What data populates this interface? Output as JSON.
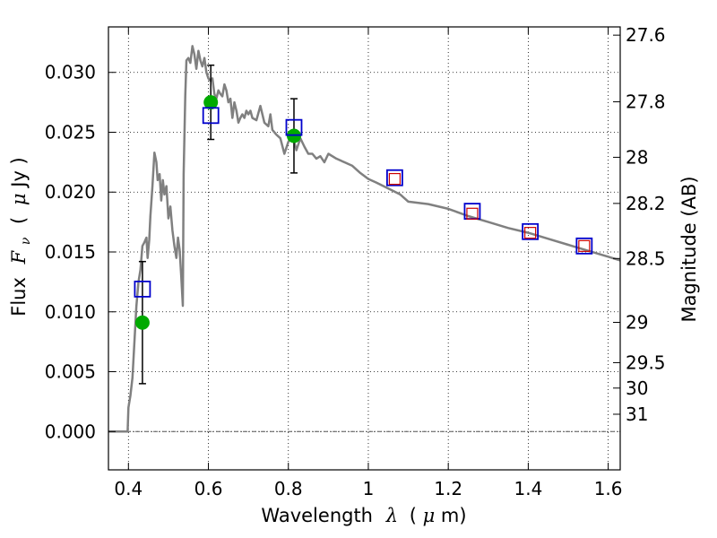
{
  "chart_data": {
    "type": "scatter",
    "xlabel_prefix": "Wavelength",
    "xlabel_symbol": "λ",
    "xlabel_unit_open": "(",
    "xlabel_unit_mu": "μ",
    "xlabel_unit_rest": "m)",
    "ylabel_prefix": "Flux",
    "ylabel_symbol": "F",
    "ylabel_subscript": "ν",
    "ylabel_unit_open": "(",
    "ylabel_unit_mu": "μ",
    "ylabel_unit_rest": "Jy )",
    "y2label": "Magnitude (AB)",
    "xlim": [
      0.35,
      1.63
    ],
    "ylim": [
      -0.0032,
      0.0338
    ],
    "grid": true,
    "x_ticks": [
      {
        "v": 0.4,
        "t": "0.4"
      },
      {
        "v": 0.6,
        "t": "0.6"
      },
      {
        "v": 0.8,
        "t": "0.8"
      },
      {
        "v": 1.0,
        "t": "1"
      },
      {
        "v": 1.2,
        "t": "1.2"
      },
      {
        "v": 1.4,
        "t": "1.4"
      },
      {
        "v": 1.6,
        "t": "1.6"
      }
    ],
    "y_ticks": [
      {
        "v": 0.0,
        "t": "0.000"
      },
      {
        "v": 0.005,
        "t": "0.005"
      },
      {
        "v": 0.01,
        "t": "0.010"
      },
      {
        "v": 0.015,
        "t": "0.015"
      },
      {
        "v": 0.02,
        "t": "0.020"
      },
      {
        "v": 0.025,
        "t": "0.025"
      },
      {
        "v": 0.03,
        "t": "0.030"
      }
    ],
    "mag_ticks": [
      {
        "v": 27.6,
        "t": "27.6"
      },
      {
        "v": 27.8,
        "t": "27.8"
      },
      {
        "v": 28.0,
        "t": "28"
      },
      {
        "v": 28.2,
        "t": "28.2"
      },
      {
        "v": 28.5,
        "t": "28.5"
      },
      {
        "v": 29.0,
        "t": "29"
      },
      {
        "v": 29.5,
        "t": "29.5"
      },
      {
        "v": 30.0,
        "t": "30"
      },
      {
        "v": 31.0,
        "t": "31"
      }
    ],
    "colors": {
      "spectrum": "#808080",
      "observed": "#00aa00",
      "model_band": "#0000cc",
      "model_ir": "#cc0000",
      "errorbar": "#000000",
      "zero_line": "#555555"
    },
    "series": [
      {
        "kind": "spectrum",
        "x": [
          0.35,
          0.398,
          0.4,
          0.405,
          0.41,
          0.415,
          0.42,
          0.425,
          0.43,
          0.435,
          0.44,
          0.445,
          0.448,
          0.452,
          0.455,
          0.46,
          0.465,
          0.47,
          0.473,
          0.478,
          0.482,
          0.486,
          0.49,
          0.495,
          0.5,
          0.505,
          0.51,
          0.515,
          0.52,
          0.524,
          0.528,
          0.532,
          0.536,
          0.538,
          0.542,
          0.545,
          0.55,
          0.555,
          0.56,
          0.565,
          0.57,
          0.575,
          0.58,
          0.585,
          0.59,
          0.595,
          0.6,
          0.605,
          0.61,
          0.615,
          0.62,
          0.625,
          0.63,
          0.635,
          0.64,
          0.645,
          0.65,
          0.655,
          0.66,
          0.665,
          0.67,
          0.675,
          0.68,
          0.685,
          0.69,
          0.695,
          0.7,
          0.705,
          0.71,
          0.72,
          0.73,
          0.74,
          0.75,
          0.755,
          0.76,
          0.77,
          0.78,
          0.79,
          0.8,
          0.81,
          0.82,
          0.83,
          0.84,
          0.85,
          0.86,
          0.87,
          0.88,
          0.89,
          0.9,
          0.92,
          0.94,
          0.96,
          0.98,
          1.0,
          1.02,
          1.05,
          1.08,
          1.1,
          1.15,
          1.2,
          1.25,
          1.3,
          1.35,
          1.4,
          1.45,
          1.5,
          1.55,
          1.6,
          1.63
        ],
        "y": [
          0.0,
          0.0,
          0.002,
          0.003,
          0.0045,
          0.0075,
          0.0105,
          0.0125,
          0.0135,
          0.0155,
          0.0158,
          0.0162,
          0.0145,
          0.016,
          0.018,
          0.0205,
          0.0233,
          0.0225,
          0.021,
          0.0215,
          0.0193,
          0.021,
          0.0198,
          0.0205,
          0.0178,
          0.0188,
          0.0168,
          0.0155,
          0.0145,
          0.0162,
          0.0152,
          0.013,
          0.0105,
          0.0215,
          0.028,
          0.031,
          0.0312,
          0.0308,
          0.0322,
          0.0315,
          0.0303,
          0.0318,
          0.031,
          0.0305,
          0.0312,
          0.03,
          0.0295,
          0.0293,
          0.0295,
          0.0282,
          0.0278,
          0.0285,
          0.0282,
          0.028,
          0.029,
          0.0285,
          0.0275,
          0.0278,
          0.0262,
          0.0275,
          0.0268,
          0.0258,
          0.0262,
          0.0265,
          0.0262,
          0.0268,
          0.0265,
          0.0268,
          0.0262,
          0.026,
          0.0272,
          0.0258,
          0.0255,
          0.0265,
          0.0252,
          0.0248,
          0.0245,
          0.0232,
          0.0242,
          0.0248,
          0.0235,
          0.0245,
          0.0238,
          0.0232,
          0.0232,
          0.0228,
          0.023,
          0.0225,
          0.0232,
          0.0228,
          0.0225,
          0.0222,
          0.0216,
          0.0211,
          0.0208,
          0.0203,
          0.0198,
          0.0192,
          0.019,
          0.0186,
          0.018,
          0.0175,
          0.017,
          0.0166,
          0.0161,
          0.0156,
          0.0151,
          0.0146,
          0.0143
        ]
      },
      {
        "kind": "observed",
        "points": [
          {
            "x": 0.435,
            "y": 0.0091,
            "err": 0.0051
          },
          {
            "x": 0.606,
            "y": 0.0275,
            "err": 0.0031
          },
          {
            "x": 0.814,
            "y": 0.0247,
            "err": 0.0031
          }
        ]
      },
      {
        "kind": "model_band",
        "points": [
          {
            "x": 0.435,
            "y": 0.0119
          },
          {
            "x": 0.606,
            "y": 0.0264
          },
          {
            "x": 0.814,
            "y": 0.0254
          },
          {
            "x": 1.066,
            "y": 0.0212
          },
          {
            "x": 1.26,
            "y": 0.0184
          },
          {
            "x": 1.405,
            "y": 0.0167
          },
          {
            "x": 1.54,
            "y": 0.0155
          }
        ]
      },
      {
        "kind": "model_ir",
        "points": [
          {
            "x": 1.066,
            "y": 0.0211
          },
          {
            "x": 1.26,
            "y": 0.0182
          },
          {
            "x": 1.405,
            "y": 0.0166
          },
          {
            "x": 1.54,
            "y": 0.0155
          }
        ]
      }
    ]
  }
}
